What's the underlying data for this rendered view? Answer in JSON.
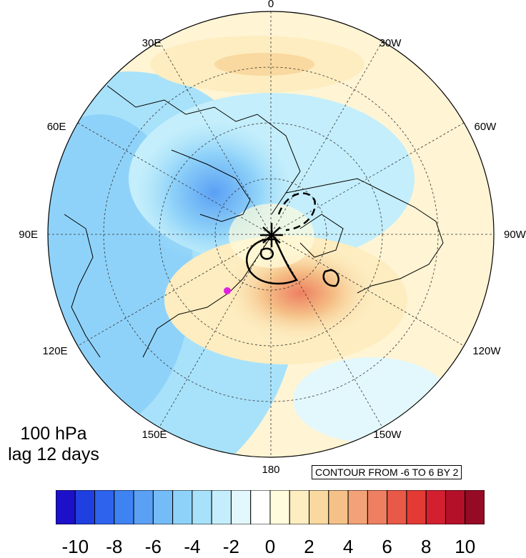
{
  "map": {
    "longitude_labels": [
      "0",
      "30W",
      "60W",
      "90W",
      "120W",
      "150W",
      "180",
      "150E",
      "120E",
      "90E",
      "60E",
      "30E"
    ],
    "level_label": "100 hPa",
    "lag_label": "lag 12 days",
    "contour_note": "CONTOUR FROM -6 TO 6 BY 2",
    "marker_color": "#e020e0"
  },
  "colorbar": {
    "labels": [
      "-10",
      "-8",
      "-6",
      "-4",
      "-2",
      "0",
      "2",
      "4",
      "6",
      "8",
      "10"
    ],
    "colors": [
      "#1c10c8",
      "#1f3fe0",
      "#2e63ee",
      "#3e83f2",
      "#5aa0f4",
      "#74bcf7",
      "#8fd2f9",
      "#a8e2fa",
      "#c4eefb",
      "#e3f8fc",
      "#ffffff",
      "#fffbdc",
      "#fdedc0",
      "#f9d9a0",
      "#f5c188",
      "#f2a276",
      "#ee7f60",
      "#e95948",
      "#e33a34",
      "#d22030",
      "#b4102a",
      "#950a24"
    ]
  }
}
